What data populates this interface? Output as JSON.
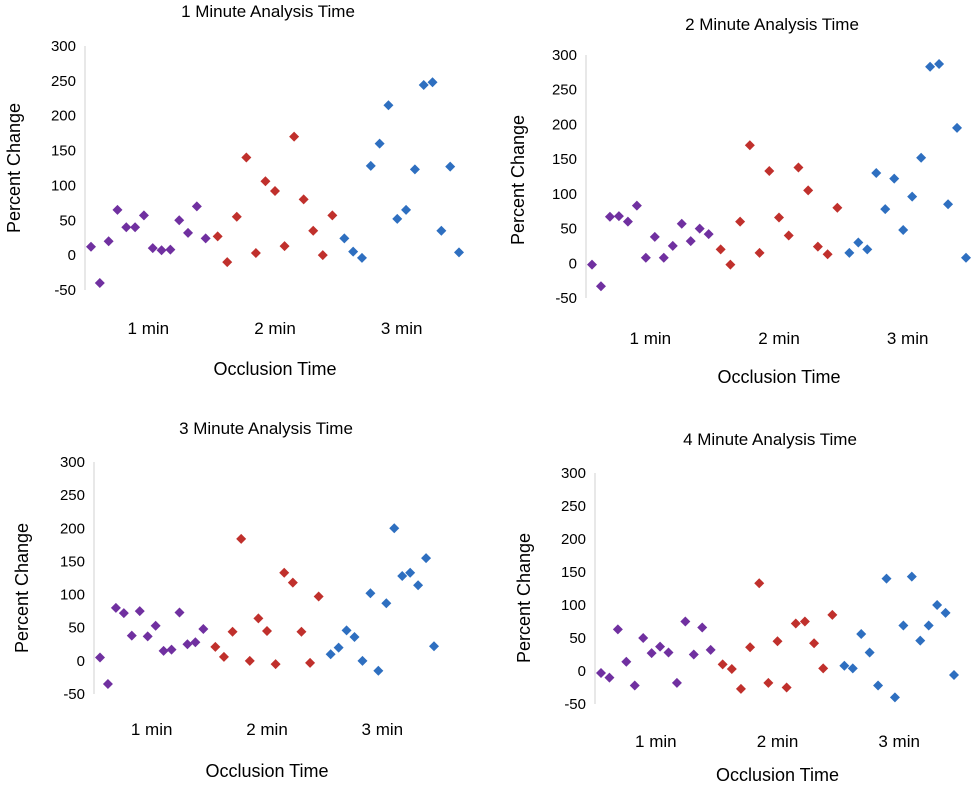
{
  "chart_data": [
    {
      "type": "scatter",
      "title": "1 Minute Analysis Time",
      "xlabel": "Occlusion Time",
      "ylabel": "Percent Change",
      "categories": [
        "1 min",
        "2 min",
        "3 min"
      ],
      "yticks": [
        "300",
        "250",
        "200",
        "150",
        "100",
        "50",
        "0",
        "-50"
      ],
      "ylim": [
        -50,
        300
      ],
      "grid": false,
      "series": [
        {
          "color": "#7030a0",
          "category": "1 min",
          "values": [
            12,
            -40,
            20,
            65,
            40,
            40,
            57,
            10,
            7,
            8,
            50,
            32,
            70,
            24
          ]
        },
        {
          "color": "#c0302c",
          "category": "2 min",
          "values": [
            27,
            -10,
            55,
            140,
            3,
            106,
            92,
            13,
            170,
            80,
            35,
            0,
            57
          ]
        },
        {
          "color": "#2e6fc0",
          "category": "3 min",
          "values": [
            24,
            5,
            -4,
            128,
            160,
            215,
            52,
            65,
            123,
            244,
            248,
            35,
            127,
            4
          ]
        }
      ]
    },
    {
      "type": "scatter",
      "title": "2 Minute Analysis Time",
      "xlabel": "Occlusion Time",
      "ylabel": "Percent Change",
      "categories": [
        "1 min",
        "2 min",
        "3 min"
      ],
      "yticks": [
        "300",
        "250",
        "200",
        "150",
        "100",
        "50",
        "0",
        "-50"
      ],
      "ylim": [
        -50,
        300
      ],
      "grid": false,
      "series": [
        {
          "color": "#7030a0",
          "category": "1 min",
          "values": [
            -2,
            -33,
            67,
            68,
            60,
            83,
            8,
            38,
            8,
            25,
            57,
            32,
            50,
            42
          ]
        },
        {
          "color": "#c0302c",
          "category": "2 min",
          "values": [
            20,
            -2,
            60,
            170,
            15,
            133,
            66,
            40,
            138,
            105,
            24,
            13,
            80
          ]
        },
        {
          "color": "#2e6fc0",
          "category": "3 min",
          "values": [
            15,
            30,
            20,
            130,
            78,
            122,
            48,
            96,
            152,
            283,
            287,
            85,
            195,
            8
          ]
        }
      ]
    },
    {
      "type": "scatter",
      "title": "3 Minute Analysis Time",
      "xlabel": "Occlusion Time",
      "ylabel": "Percent Change",
      "categories": [
        "1 min",
        "2 min",
        "3 min"
      ],
      "yticks": [
        "300",
        "250",
        "200",
        "150",
        "100",
        "50",
        "0",
        "-50"
      ],
      "ylim": [
        -50,
        300
      ],
      "grid": false,
      "series": [
        {
          "color": "#7030a0",
          "category": "1 min",
          "values": [
            5,
            -35,
            80,
            72,
            38,
            75,
            37,
            53,
            15,
            17,
            73,
            25,
            28,
            48
          ]
        },
        {
          "color": "#c0302c",
          "category": "2 min",
          "values": [
            21,
            6,
            44,
            184,
            0,
            64,
            45,
            -5,
            133,
            118,
            44,
            -3,
            97
          ]
        },
        {
          "color": "#2e6fc0",
          "category": "3 min",
          "values": [
            10,
            20,
            46,
            36,
            0,
            102,
            -15,
            87,
            200,
            128,
            133,
            114,
            155,
            22
          ]
        }
      ]
    },
    {
      "type": "scatter",
      "title": "4 Minute Analysis Time",
      "xlabel": "Occlusion Time",
      "ylabel": "Percent Change",
      "categories": [
        "1 min",
        "2 min",
        "3 min"
      ],
      "yticks": [
        "300",
        "250",
        "200",
        "150",
        "100",
        "50",
        "0",
        "-50"
      ],
      "ylim": [
        -50,
        300
      ],
      "grid": false,
      "series": [
        {
          "color": "#7030a0",
          "category": "1 min",
          "values": [
            -3,
            -10,
            63,
            14,
            -22,
            50,
            27,
            37,
            28,
            -18,
            75,
            25,
            66,
            32
          ]
        },
        {
          "color": "#c0302c",
          "category": "2 min",
          "values": [
            10,
            3,
            -27,
            36,
            133,
            -18,
            45,
            -25,
            72,
            75,
            42,
            4,
            85
          ]
        },
        {
          "color": "#2e6fc0",
          "category": "3 min",
          "values": [
            8,
            4,
            56,
            28,
            -22,
            140,
            -40,
            69,
            143,
            46,
            69,
            100,
            88,
            -6
          ]
        }
      ]
    }
  ]
}
